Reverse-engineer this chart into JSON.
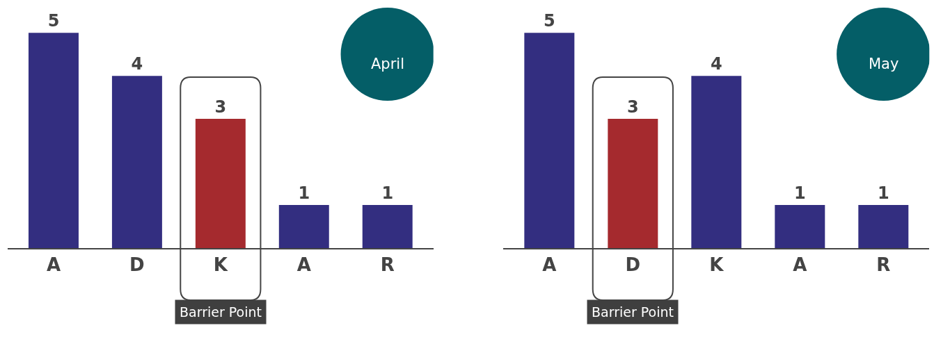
{
  "chart_data": [
    {
      "type": "bar",
      "title": "April",
      "categories": [
        "A",
        "D",
        "K",
        "A",
        "R"
      ],
      "values": [
        5,
        4,
        3,
        1,
        1
      ],
      "colors": [
        "#332e80",
        "#332e80",
        "#a52a2e",
        "#332e80",
        "#332e80"
      ],
      "data_labels": true,
      "tick_labels": "x",
      "annotations": [
        "Barrier Point"
      ]
    },
    {
      "type": "bar",
      "title": "May",
      "categories": [
        "A",
        "D",
        "K",
        "A",
        "R"
      ],
      "values": [
        5,
        3,
        4,
        1,
        1
      ],
      "colors": [
        "#332e80",
        "#a52a2e",
        "#332e80",
        "#332e80",
        "#332e80"
      ],
      "data_labels": true,
      "tick_labels": "x",
      "annotations": [
        "Barrier Point"
      ]
    }
  ]
}
